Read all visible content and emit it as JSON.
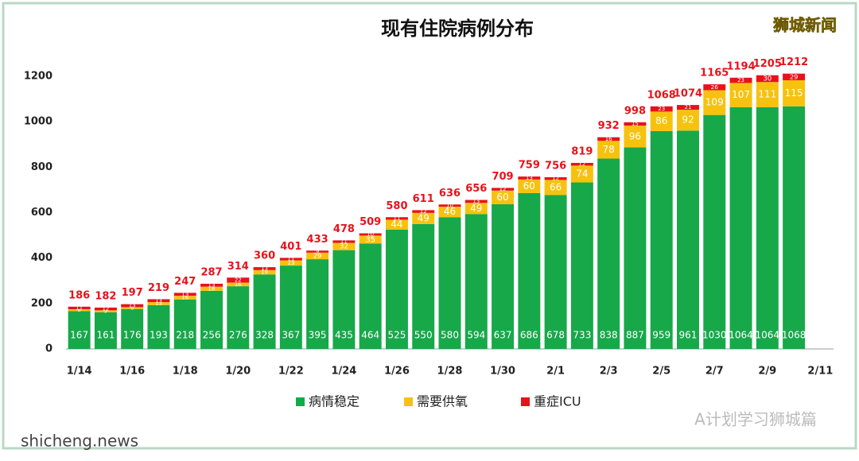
{
  "chart_data": {
    "type": "stacked-bar",
    "title": "现有住院病例分布",
    "categories": [
      "1/14",
      null,
      "1/16",
      null,
      "1/18",
      null,
      "1/20",
      null,
      "1/22",
      null,
      "1/24",
      null,
      "1/26",
      null,
      "1/28",
      null,
      "1/30",
      null,
      "2/1",
      null,
      "2/3",
      null,
      "2/5",
      null,
      "2/7",
      null,
      "2/9",
      null,
      "2/11"
    ],
    "series": [
      {
        "name": "病情稳定",
        "color": "#17a84a",
        "values": [
          167,
          161,
          176,
          193,
          218,
          256,
          276,
          328,
          367,
          395,
          435,
          464,
          525,
          550,
          580,
          594,
          637,
          686,
          678,
          733,
          838,
          887,
          959,
          961,
          1030,
          1064,
          1064,
          1068,
          null
        ]
      },
      {
        "name": "需要供氧",
        "color": "#f7c20f",
        "values": [
          8,
          9,
          8,
          13,
          16,
          18,
          16,
          19,
          23,
          29,
          32,
          35,
          44,
          49,
          46,
          49,
          60,
          60,
          66,
          74,
          78,
          96,
          86,
          92,
          109,
          107,
          111,
          115,
          null
        ]
      },
      {
        "name": "重症ICU",
        "color": "#e8121b",
        "values": [
          11,
          12,
          13,
          13,
          13,
          13,
          22,
          13,
          11,
          9,
          11,
          10,
          11,
          12,
          10,
          13,
          12,
          13,
          12,
          12,
          16,
          15,
          23,
          21,
          26,
          23,
          30,
          29,
          null
        ]
      }
    ],
    "totals": [
      186,
      182,
      197,
      219,
      247,
      287,
      314,
      360,
      401,
      433,
      478,
      509,
      580,
      611,
      636,
      656,
      709,
      759,
      756,
      819,
      932,
      998,
      1068,
      1074,
      1165,
      1194,
      1205,
      1212,
      null
    ],
    "totals_color": "#e8121b",
    "ylim": [
      0,
      1300
    ],
    "yticks": [
      0,
      200,
      400,
      600,
      800,
      1000,
      1200
    ],
    "grid": false,
    "legend": "bottom",
    "watermarks": [
      "狮城新闻",
      "A计划学习狮城篇",
      "shicheng.news"
    ]
  }
}
